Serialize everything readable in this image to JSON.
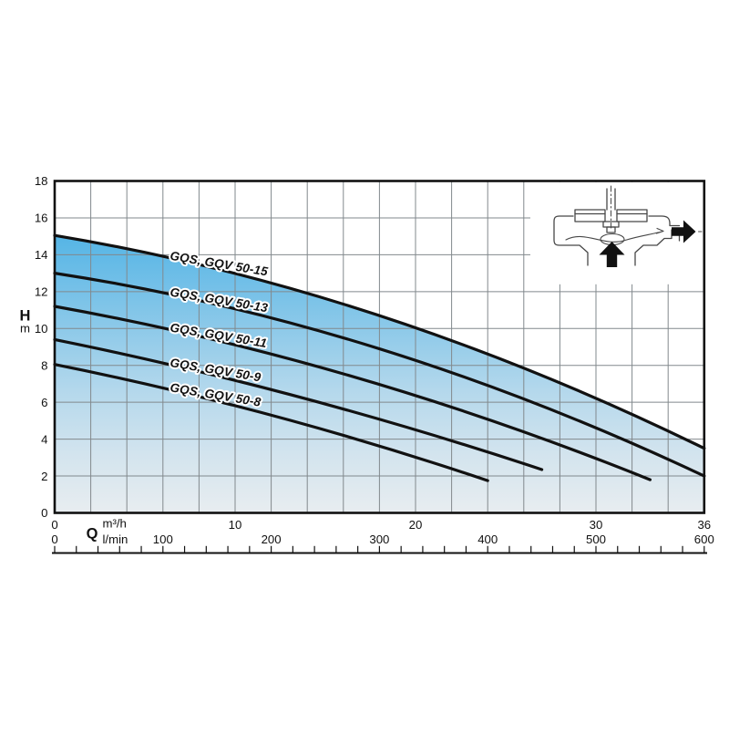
{
  "page": {
    "background": "#ffffff"
  },
  "chart": {
    "y_axis": {
      "label": "H",
      "unit": "m",
      "tick_values": [
        18,
        16,
        14,
        12,
        10,
        8,
        6,
        4,
        2,
        0
      ]
    },
    "x_axis": {
      "label": "Q",
      "primary": {
        "unit": "m³/h",
        "tick_values": [
          0,
          10,
          20,
          30,
          36
        ],
        "max": 36
      },
      "secondary": {
        "unit": "l/min",
        "tick_values": [
          0,
          100,
          200,
          300,
          400,
          500,
          600
        ],
        "max": 600,
        "minor_tick_step": 20
      }
    },
    "chart_data": {
      "type": "line",
      "x_unit": "m³/h",
      "y_unit": "m",
      "xlim": [
        0,
        36
      ],
      "ylim": [
        0,
        18
      ],
      "grid": "on",
      "grid_step": {
        "x": 2,
        "y": 2
      },
      "series": [
        {
          "name": "GQS, GQV 50-15",
          "points": [
            [
              0,
              15.05
            ],
            [
              18,
              10.7
            ],
            [
              36,
              3.5
            ]
          ]
        },
        {
          "name": "GQS, GQV 50-13",
          "points": [
            [
              0,
              13.0
            ],
            [
              18,
              8.9
            ],
            [
              36,
              2.0
            ]
          ]
        },
        {
          "name": "GQS, GQV 50-11",
          "points": [
            [
              0,
              11.2
            ],
            [
              16.5,
              7.4
            ],
            [
              33,
              1.8
            ]
          ]
        },
        {
          "name": "GQS, GQV 50-9",
          "points": [
            [
              0,
              9.4
            ],
            [
              13.5,
              6.3
            ],
            [
              27,
              2.35
            ]
          ]
        },
        {
          "name": "GQS, GQV 50-8",
          "points": [
            [
              0,
              8.05
            ],
            [
              12,
              5.3
            ],
            [
              24,
              1.75
            ]
          ]
        }
      ],
      "area_fill": {
        "under_series": "GQS, GQV 50-15",
        "gradient_top_to_bottom": [
          "#55b5e6",
          "#8cc9e9",
          "#b4d8ec",
          "#d3e4ee",
          "#e8edf0"
        ]
      },
      "colors": {
        "curve": "#111111",
        "grid": "#82898d",
        "border": "#111111",
        "label_halo": "#ffffff"
      },
      "legend": "labels-on-curves"
    },
    "icon": {
      "name": "pump-cross-section-icon",
      "arrows": [
        "inlet-up",
        "outlet-right"
      ]
    }
  }
}
